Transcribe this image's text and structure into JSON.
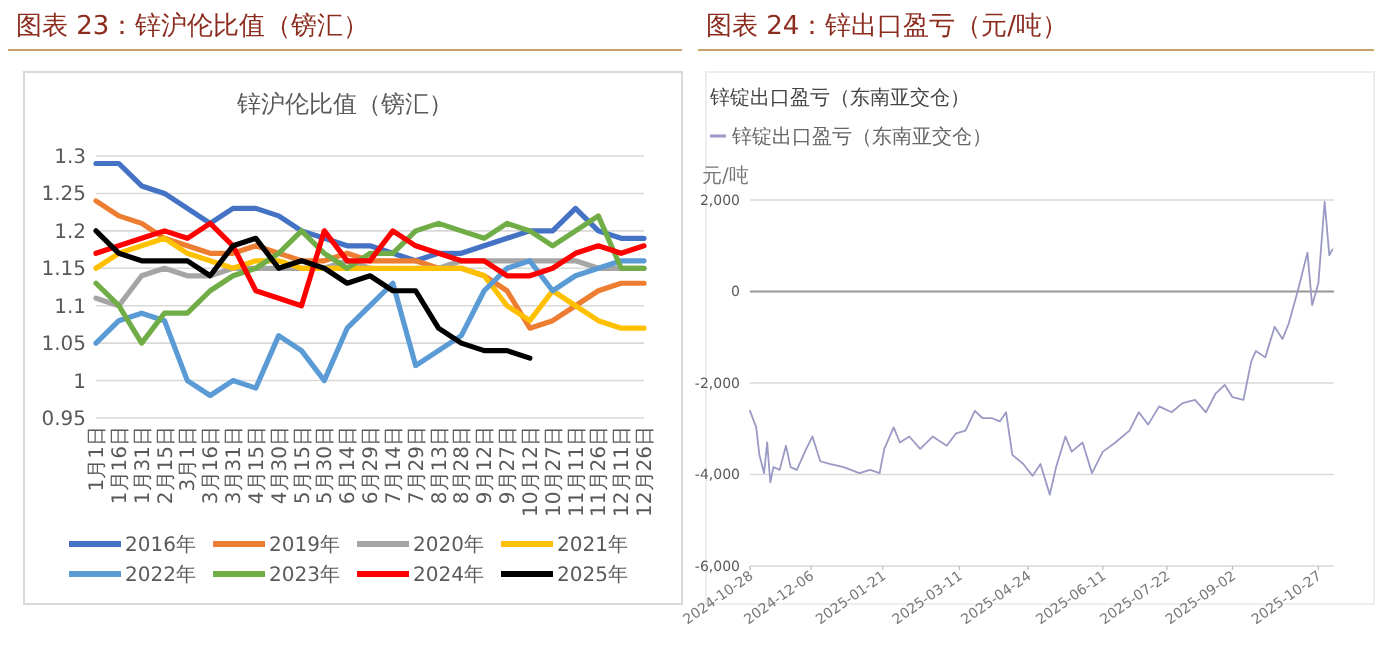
{
  "chart_data": [
    {
      "type": "line",
      "title": "图表 23：锌沪伦比值（镑汇）",
      "subtitle": "锌沪伦比值（镑汇）",
      "categories": [
        "1月1日",
        "1月16日",
        "1月31日",
        "2月15日",
        "3月1日",
        "3月16日",
        "3月31日",
        "4月15日",
        "4月30日",
        "5月15日",
        "5月30日",
        "6月14日",
        "6月29日",
        "7月14日",
        "7月29日",
        "8月13日",
        "8月28日",
        "9月12日",
        "9月27日",
        "10月12日",
        "10月27日",
        "11月11日",
        "11月26日",
        "12月11日",
        "12月26日"
      ],
      "series": [
        {
          "name": "2016年",
          "color": "#4472c4",
          "values": [
            1.29,
            1.29,
            1.26,
            1.25,
            1.23,
            1.21,
            1.23,
            1.23,
            1.22,
            1.2,
            1.19,
            1.18,
            1.18,
            1.17,
            1.16,
            1.17,
            1.17,
            1.18,
            1.19,
            1.2,
            1.2,
            1.23,
            1.2,
            1.19,
            1.19
          ]
        },
        {
          "name": "2019年",
          "color": "#ed7d31",
          "values": [
            1.24,
            1.22,
            1.21,
            1.19,
            1.18,
            1.17,
            1.17,
            1.18,
            1.17,
            1.16,
            1.16,
            1.17,
            1.16,
            1.16,
            1.16,
            1.15,
            1.15,
            1.14,
            1.12,
            1.07,
            1.08,
            1.1,
            1.12,
            1.13,
            1.13
          ]
        },
        {
          "name": "2020年",
          "color": "#a5a5a5",
          "values": [
            1.11,
            1.1,
            1.14,
            1.15,
            1.14,
            1.14,
            1.15,
            1.15,
            1.15,
            1.15,
            1.15,
            1.16,
            1.15,
            null,
            1.15,
            1.15,
            1.16,
            1.16,
            1.16,
            1.16,
            1.16,
            1.16,
            1.15,
            1.15,
            1.15
          ]
        },
        {
          "name": "2021年",
          "color": "#ffc000",
          "values": [
            1.15,
            1.17,
            1.18,
            1.19,
            1.17,
            1.16,
            1.15,
            1.16,
            1.16,
            1.15,
            1.15,
            1.15,
            1.15,
            1.15,
            1.15,
            1.15,
            1.15,
            1.14,
            1.1,
            1.08,
            1.12,
            1.1,
            1.08,
            1.07,
            1.07
          ]
        },
        {
          "name": "2022年",
          "color": "#5b9bd5",
          "values": [
            1.05,
            1.08,
            1.09,
            1.08,
            1.0,
            0.98,
            1.0,
            0.99,
            1.06,
            1.04,
            1.0,
            1.07,
            1.1,
            1.13,
            1.02,
            1.04,
            1.06,
            1.12,
            1.15,
            1.16,
            1.12,
            1.14,
            1.15,
            1.16,
            1.16
          ]
        },
        {
          "name": "2023年",
          "color": "#70ad47",
          "values": [
            1.13,
            1.1,
            1.05,
            1.09,
            1.09,
            1.12,
            1.14,
            1.15,
            1.17,
            1.2,
            1.17,
            1.15,
            1.17,
            1.17,
            1.2,
            1.21,
            1.2,
            1.19,
            1.21,
            1.2,
            1.18,
            1.2,
            1.22,
            1.15,
            1.15
          ]
        },
        {
          "name": "2024年",
          "color": "#ff0000",
          "values": [
            1.17,
            1.18,
            1.19,
            1.2,
            1.19,
            1.21,
            1.18,
            1.12,
            1.11,
            1.1,
            1.2,
            1.16,
            1.16,
            1.2,
            1.18,
            1.17,
            1.16,
            1.16,
            1.14,
            1.14,
            1.15,
            1.17,
            1.18,
            1.17,
            1.18
          ]
        },
        {
          "name": "2025年",
          "color": "#000000",
          "values": [
            1.2,
            1.17,
            1.16,
            1.16,
            1.16,
            1.14,
            1.18,
            1.19,
            1.15,
            1.16,
            1.15,
            1.13,
            1.14,
            1.12,
            1.12,
            1.07,
            1.05,
            1.04,
            1.04,
            1.03,
            null,
            null,
            null,
            null,
            null
          ]
        }
      ],
      "ylim": [
        0.95,
        1.3
      ],
      "yticks": [
        0.95,
        1,
        1.05,
        1.1,
        1.15,
        1.2,
        1.25,
        1.3
      ],
      "grid": "y",
      "legend": "bottom"
    },
    {
      "type": "line",
      "title": "图表 24：锌出口盈亏（元/吨）",
      "subtitle": "锌锭出口盈亏（东南亚交仓）",
      "ylabel": "元/吨",
      "x": [
        "2024-10-28",
        "2024-11-01",
        "2024-11-03",
        "2024-11-06",
        "2024-11-08",
        "2024-11-10",
        "2024-11-12",
        "2024-11-16",
        "2024-11-20",
        "2024-11-23",
        "2024-11-27",
        "2024-12-03",
        "2024-12-07",
        "2024-12-12",
        "2024-12-18",
        "2024-12-27",
        "2025-01-06",
        "2025-01-13",
        "2025-01-19",
        "2025-01-22",
        "2025-01-28",
        "2025-02-01",
        "2025-02-07",
        "2025-02-14",
        "2025-02-22",
        "2025-03-03",
        "2025-03-09",
        "2025-03-15",
        "2025-03-21",
        "2025-03-26",
        "2025-04-01",
        "2025-04-06",
        "2025-04-10",
        "2025-04-14",
        "2025-04-21",
        "2025-04-27",
        "2025-05-02",
        "2025-05-08",
        "2025-05-12",
        "2025-05-18",
        "2025-05-22",
        "2025-05-29",
        "2025-06-04",
        "2025-06-11",
        "2025-06-19",
        "2025-06-28",
        "2025-07-04",
        "2025-07-10",
        "2025-07-17",
        "2025-07-25",
        "2025-08-01",
        "2025-08-09",
        "2025-08-16",
        "2025-08-22",
        "2025-08-28",
        "2025-09-02",
        "2025-09-09",
        "2025-09-14",
        "2025-09-17",
        "2025-09-23",
        "2025-09-29",
        "2025-10-04",
        "2025-10-08",
        "2025-10-14",
        "2025-10-20",
        "2025-10-23",
        "2025-10-27",
        "2025-10-31",
        "2025-11-03",
        "2025-11-05"
      ],
      "series": [
        {
          "name": "锌锭出口盈亏（东南亚交仓）",
          "color": "#9a9ac4",
          "values": [
            -2610,
            -2970,
            -3570,
            -3970,
            -3300,
            -4170,
            -3840,
            -3900,
            -3370,
            -3840,
            -3900,
            -3440,
            -3170,
            -3710,
            -3770,
            -3840,
            -3970,
            -3900,
            -3970,
            -3440,
            -2970,
            -3300,
            -3170,
            -3440,
            -3170,
            -3370,
            -3100,
            -3040,
            -2610,
            -2770,
            -2770,
            -2840,
            -2640,
            -3570,
            -3770,
            -4030,
            -3770,
            -4440,
            -3840,
            -3170,
            -3500,
            -3300,
            -3970,
            -3500,
            -3300,
            -3040,
            -2640,
            -2910,
            -2510,
            -2640,
            -2440,
            -2370,
            -2640,
            -2240,
            -2040,
            -2310,
            -2370,
            -1530,
            -1300,
            -1440,
            -770,
            -1040,
            -700,
            40,
            850,
            -300,
            180,
            1960,
            790,
            920
          ]
        }
      ],
      "xlim": [
        "2024-10-28",
        "2025-11-06"
      ],
      "xticks": [
        "2024-10-28",
        "2024-12-06",
        "2025-01-21",
        "2025-03-11",
        "2025-04-24",
        "2025-06-11",
        "2025-07-22",
        "2025-09-02",
        "2025-10-27"
      ],
      "ylim": [
        -6000,
        2000
      ],
      "yticks": [
        {
          "value": -6000,
          "label": "-6,000"
        },
        {
          "value": -4000,
          "label": "-4,000"
        },
        {
          "value": -2000,
          "label": "-2,000"
        },
        0,
        {
          "value": 2000,
          "label": "2,000"
        }
      ],
      "ref_lines": [
        {
          "axis": "y",
          "value": 0,
          "color": "#999999"
        }
      ],
      "grid": "y",
      "legend": "top left"
    }
  ]
}
